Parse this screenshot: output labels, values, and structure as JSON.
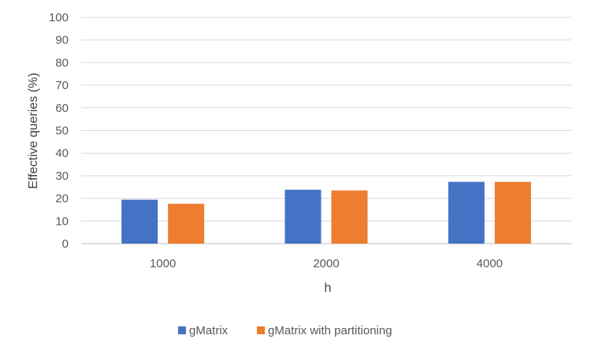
{
  "chart_data": {
    "type": "bar",
    "categories": [
      "1000",
      "2000",
      "4000"
    ],
    "series": [
      {
        "name": "gMatrix",
        "values": [
          19.4,
          23.8,
          27.3
        ],
        "color": "#4472C4"
      },
      {
        "name": "gMatrix with partitioning",
        "values": [
          17.6,
          23.5,
          27.3
        ],
        "color": "#ED7D31"
      }
    ],
    "xlabel": "h",
    "ylabel": "Effective queries (%)",
    "ylim": [
      0,
      100
    ],
    "yticks": [
      0,
      10,
      20,
      30,
      40,
      50,
      60,
      70,
      80,
      90,
      100
    ],
    "grid": true,
    "legend_position": "bottom",
    "gridline_color": "#D9D9D9",
    "axis_color": "#BFBFBF"
  }
}
